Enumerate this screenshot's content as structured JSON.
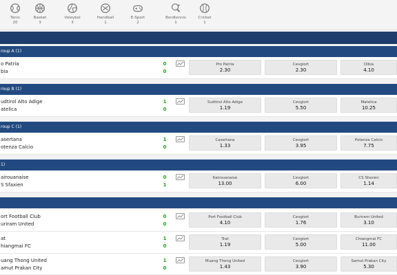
{
  "sports": [
    {
      "label": "Tenis",
      "count": "20",
      "icon": "tennis-icon"
    },
    {
      "label": "Basket",
      "count": "3",
      "icon": "basketball-icon"
    },
    {
      "label": "Voleybol",
      "count": "3",
      "icon": "volleyball-icon"
    },
    {
      "label": "Handball",
      "count": "1",
      "icon": "handball-icon"
    },
    {
      "label": "E-Sport",
      "count": "2",
      "icon": "gamepad-icon"
    },
    {
      "label": "Bordtennis",
      "count": "1",
      "icon": "table-tennis-icon"
    },
    {
      "label": "Cricket",
      "count": "1",
      "icon": "cricket-icon"
    }
  ],
  "groups": [
    {
      "title": "roup A (1)",
      "matches": [
        {
          "home": "o Patria",
          "away": "bia",
          "home_score": "0",
          "away_score": "0",
          "odds": [
            {
              "label": "Pro Patria",
              "value": "2.30"
            },
            {
              "label": "Cevgiort",
              "value": "2.30"
            },
            {
              "label": "Olbia",
              "value": "4.10"
            }
          ]
        }
      ]
    },
    {
      "title": "roup B (1)",
      "matches": [
        {
          "home": "udtirol Alto Adige",
          "away": "atelica",
          "home_score": "1",
          "away_score": "0",
          "odds": [
            {
              "label": "Sudtirol Alto Adige",
              "value": "1.19"
            },
            {
              "label": "Cevgiort",
              "value": "5.50"
            },
            {
              "label": "Matelica",
              "value": "10.25"
            }
          ]
        }
      ]
    },
    {
      "title": "roup C (1)",
      "matches": [
        {
          "home": "asertana",
          "away": "otenza Calcio",
          "home_score": "1",
          "away_score": "0",
          "odds": [
            {
              "label": "Casertana",
              "value": "1.33"
            },
            {
              "label": "Cevgiort",
              "value": "3.95"
            },
            {
              "label": "Potenza Calcio",
              "value": "7.75"
            }
          ]
        }
      ]
    },
    {
      "title": "1)",
      "matches": [
        {
          "home": "airouanaise",
          "away": "S Sfaxien",
          "home_score": "0",
          "away_score": "1",
          "odds": [
            {
              "label": "Kairouanaise",
              "value": "13.00"
            },
            {
              "label": "Cevgiort",
              "value": "6.00"
            },
            {
              "label": "CS Sfaxien",
              "value": "1.14"
            }
          ]
        }
      ]
    },
    {
      "title": "",
      "matches": [
        {
          "home": "ort Football Club",
          "away": "uriram United",
          "home_score": "0",
          "away_score": "0",
          "odds": [
            {
              "label": "Port Football Club",
              "value": "4.10"
            },
            {
              "label": "Cevgiort",
              "value": "1.76"
            },
            {
              "label": "Buriram United",
              "value": "3.10"
            }
          ]
        },
        {
          "home": "at",
          "away": "hiangmai FC",
          "home_score": "1",
          "away_score": "0",
          "odds": [
            {
              "label": "Trat",
              "value": "1.19"
            },
            {
              "label": "Cevgiort",
              "value": "5.00"
            },
            {
              "label": "Chiangmai FC",
              "value": "11.00"
            }
          ]
        },
        {
          "home": "uang Thong United",
          "away": "amut Prakan City",
          "home_score": "1",
          "away_score": "0",
          "odds": [
            {
              "label": "Muang Thong United",
              "value": "1.43"
            },
            {
              "label": "Cevgiort",
              "value": "3.90"
            },
            {
              "label": "Samut Prakan City",
              "value": "5.30"
            }
          ]
        }
      ]
    }
  ]
}
